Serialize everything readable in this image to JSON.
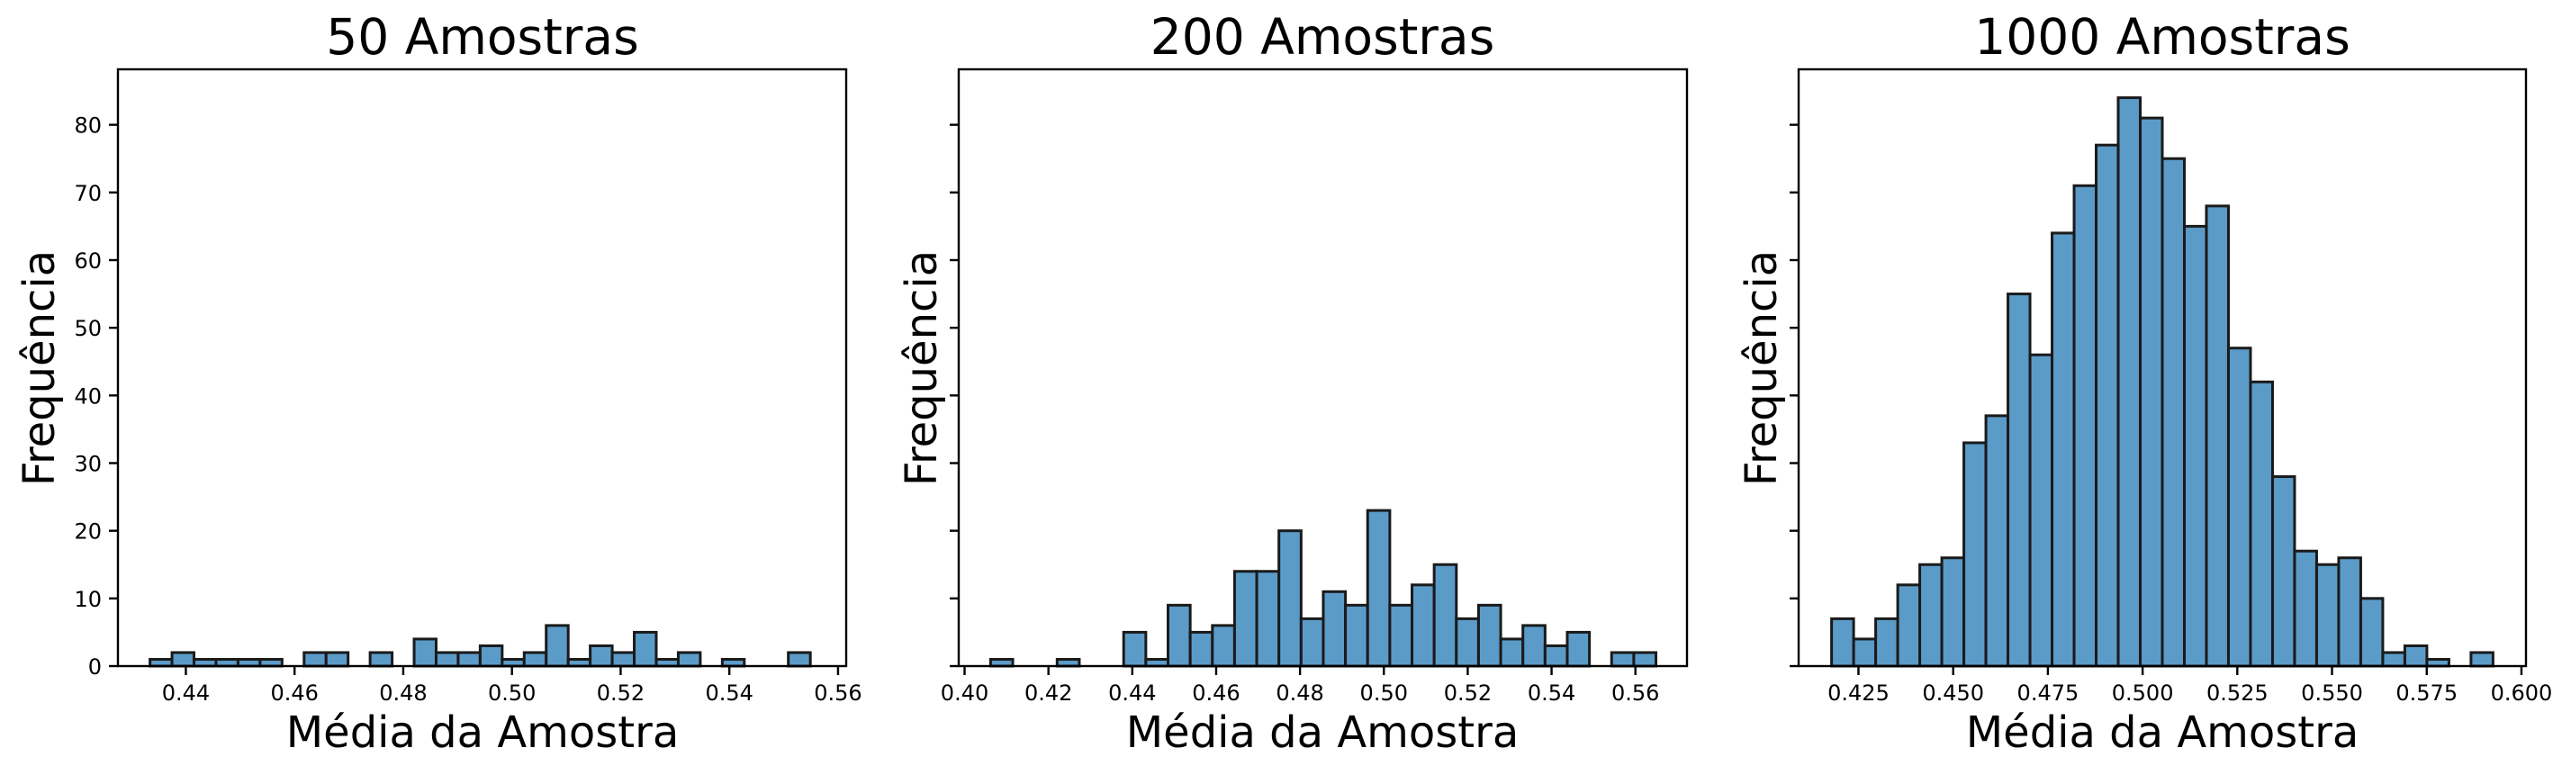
{
  "chart_data": [
    {
      "type": "bar",
      "title": "50 Amostras",
      "xlabel": "Média da Amostra",
      "ylabel": "Frequência",
      "xlim": [
        0.4275,
        0.5615
      ],
      "ylim": [
        0,
        88.2
      ],
      "xticks": [
        0.44,
        0.46,
        0.48,
        0.5,
        0.52,
        0.54,
        0.56
      ],
      "xtick_labels": [
        "0.44",
        "0.46",
        "0.48",
        "0.50",
        "0.52",
        "0.54",
        "0.56"
      ],
      "yticks": [
        0,
        10,
        20,
        30,
        40,
        50,
        60,
        70,
        80
      ],
      "ytick_labels": [
        "0",
        "10",
        "20",
        "30",
        "40",
        "50",
        "60",
        "70",
        "80"
      ],
      "show_yticklabels": true,
      "bin_start": 0.4334,
      "bin_width": 0.00405,
      "counts": [
        1,
        2,
        1,
        1,
        1,
        1,
        0,
        2,
        2,
        0,
        2,
        0,
        4,
        2,
        2,
        3,
        1,
        2,
        6,
        1,
        3,
        2,
        5,
        1,
        2,
        0,
        1,
        0,
        0,
        2
      ],
      "color": "#5b9bc8",
      "edge_color": "#1a1a1a"
    },
    {
      "type": "bar",
      "title": "200 Amostras",
      "xlabel": "Média da Amostra",
      "ylabel": "Frequência",
      "xlim": [
        0.3986,
        0.5723
      ],
      "ylim": [
        0,
        88.2
      ],
      "xticks": [
        0.4,
        0.42,
        0.44,
        0.46,
        0.48,
        0.5,
        0.52,
        0.54,
        0.56
      ],
      "xtick_labels": [
        "0.40",
        "0.42",
        "0.44",
        "0.46",
        "0.48",
        "0.50",
        "0.52",
        "0.54",
        "0.56"
      ],
      "yticks": [
        0,
        10,
        20,
        30,
        40,
        50,
        60,
        70,
        80
      ],
      "ytick_labels": [
        "0",
        "10",
        "20",
        "30",
        "40",
        "50",
        "60",
        "70",
        "80"
      ],
      "show_yticklabels": false,
      "bin_start": 0.4062,
      "bin_width": 0.00529,
      "counts": [
        1,
        0,
        0,
        1,
        0,
        0,
        5,
        1,
        9,
        5,
        6,
        14,
        14,
        20,
        7,
        11,
        9,
        23,
        9,
        12,
        15,
        7,
        9,
        4,
        6,
        3,
        5,
        0,
        2,
        2
      ],
      "color": "#5b9bc8",
      "edge_color": "#1a1a1a"
    },
    {
      "type": "bar",
      "title": "1000 Amostras",
      "xlabel": "Média da Amostra",
      "ylabel": "Frequência",
      "xlim": [
        0.4092,
        0.6012
      ],
      "ylim": [
        0,
        88.2
      ],
      "xticks": [
        0.425,
        0.45,
        0.475,
        0.5,
        0.525,
        0.55,
        0.575,
        0.6
      ],
      "xtick_labels": [
        "0.425",
        "0.450",
        "0.475",
        "0.500",
        "0.525",
        "0.550",
        "0.575",
        "0.600"
      ],
      "yticks": [
        0,
        10,
        20,
        30,
        40,
        50,
        60,
        70,
        80
      ],
      "ytick_labels": [
        "0",
        "10",
        "20",
        "30",
        "40",
        "50",
        "60",
        "70",
        "80"
      ],
      "show_yticklabels": false,
      "bin_start": 0.4179,
      "bin_width": 0.00582,
      "counts": [
        7,
        4,
        7,
        12,
        15,
        16,
        33,
        37,
        55,
        46,
        64,
        71,
        77,
        84,
        81,
        75,
        65,
        68,
        47,
        42,
        28,
        17,
        15,
        16,
        10,
        2,
        3,
        1,
        0,
        2
      ],
      "color": "#5b9bc8",
      "edge_color": "#1a1a1a"
    }
  ]
}
